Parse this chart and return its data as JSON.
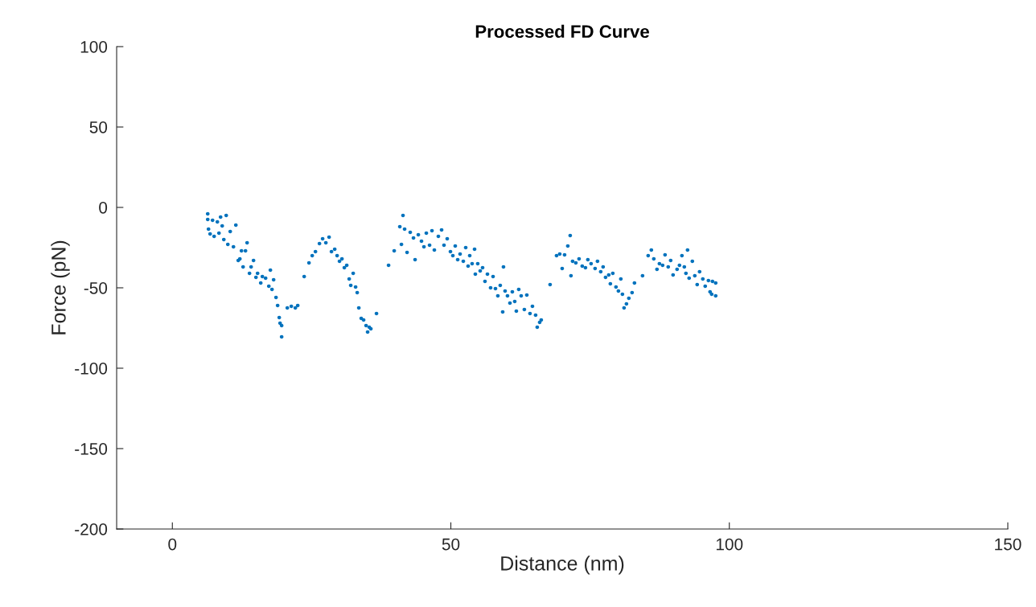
{
  "chart_data": {
    "type": "scatter",
    "title": "Processed FD Curve",
    "xlabel": "Distance (nm)",
    "ylabel": "Force (pN)",
    "xlim": [
      -10,
      150
    ],
    "xticks": [
      0,
      50,
      100,
      150
    ],
    "ylim": [
      -200,
      100
    ],
    "yticks": [
      -200,
      -150,
      -100,
      -50,
      0,
      50,
      100
    ],
    "grid": false,
    "marker": "circle",
    "series": [
      {
        "color": "#0072bd",
        "x": [
          6.35,
          6.35,
          6.49,
          6.78,
          7.22,
          7.5,
          8.08,
          8.37,
          8.66,
          8.95,
          9.24,
          9.67,
          9.96,
          10.39,
          10.97,
          11.4,
          11.83,
          12.12,
          12.41,
          12.7,
          13.13,
          13.42,
          13.85,
          14.14,
          14.57,
          15.01,
          15.3,
          15.87,
          16.16,
          16.74,
          17.32,
          17.6,
          17.89,
          18.18,
          18.61,
          18.9,
          19.19,
          19.34,
          19.62,
          19.62,
          20.64,
          21.36,
          22.08,
          22.51,
          23.67,
          24.53,
          25.11,
          25.69,
          26.41,
          26.98,
          27.56,
          28.14,
          28.57,
          29.15,
          29.58,
          30.01,
          30.45,
          30.88,
          31.31,
          31.75,
          32.03,
          32.47,
          32.9,
          33.19,
          33.48,
          33.91,
          34.34,
          34.78,
          35.06,
          35.35,
          35.64,
          36.65,
          38.82,
          39.83,
          40.84,
          41.13,
          41.41,
          41.7,
          42.14,
          42.71,
          43.29,
          43.58,
          44.16,
          44.73,
          45.17,
          45.6,
          46.18,
          46.61,
          47.04,
          47.76,
          48.34,
          48.77,
          49.35,
          49.93,
          50.36,
          50.79,
          51.23,
          51.66,
          52.24,
          52.67,
          53.1,
          53.39,
          53.82,
          54.26,
          54.4,
          54.83,
          55.27,
          55.7,
          56.13,
          56.57,
          57.14,
          57.58,
          58.01,
          58.44,
          58.87,
          59.31,
          59.45,
          59.74,
          60.17,
          60.61,
          61.04,
          61.47,
          61.76,
          62.19,
          62.63,
          63.2,
          63.64,
          64.21,
          64.65,
          65.22,
          65.51,
          65.95,
          66.23,
          67.82,
          68.98,
          69.55,
          69.99,
          70.42,
          71.0,
          71.43,
          71.57,
          71.86,
          72.44,
          73.02,
          73.59,
          74.17,
          74.6,
          75.18,
          75.9,
          76.33,
          76.91,
          77.34,
          77.78,
          78.35,
          78.64,
          79.08,
          79.65,
          80.09,
          80.52,
          80.81,
          81.1,
          81.53,
          81.96,
          82.54,
          82.97,
          84.42,
          85.43,
          86.0,
          86.44,
          87.01,
          87.45,
          88.02,
          88.46,
          89.03,
          89.47,
          89.9,
          90.62,
          91.05,
          91.49,
          91.92,
          92.21,
          92.5,
          92.78,
          93.36,
          93.8,
          94.23,
          94.66,
          95.24,
          95.67,
          96.25,
          96.54,
          96.97,
          97.55,
          97.55,
          96.83
        ],
        "values": [
          -4,
          -7.5,
          -13.5,
          -16.5,
          -8,
          -18,
          -9,
          -16,
          -6,
          -11.5,
          -20,
          -5,
          -23,
          -15,
          -24.5,
          -11,
          -33,
          -32,
          -27,
          -37,
          -27,
          -22,
          -41,
          -37,
          -33,
          -43.5,
          -41,
          -47,
          -43,
          -44,
          -49,
          -39,
          -51,
          -45,
          -56,
          -61,
          -68.5,
          -72,
          -80.5,
          -73.5,
          -62.5,
          -61.5,
          -62.5,
          -61,
          -43,
          -34.5,
          -30,
          -27.5,
          -22.5,
          -19.5,
          -22,
          -18.5,
          -27.5,
          -26,
          -30,
          -33.5,
          -32,
          -37.5,
          -36,
          -44.5,
          -48.5,
          -41,
          -49.5,
          -53,
          -62.5,
          -69,
          -70,
          -73.5,
          -77.5,
          -74.5,
          -75.5,
          -66,
          -36,
          -27,
          -12,
          -23,
          -5,
          -13.5,
          -28,
          -15.5,
          -19,
          -32.5,
          -17,
          -21,
          -24.5,
          -16,
          -23.5,
          -14.5,
          -26.5,
          -18,
          -14,
          -23.5,
          -19.5,
          -27.5,
          -30,
          -24,
          -32.5,
          -29,
          -33.5,
          -25,
          -36.5,
          -30,
          -35,
          -26,
          -41.5,
          -35,
          -39.5,
          -37.5,
          -46,
          -41.5,
          -50,
          -43,
          -50.5,
          -55,
          -48.5,
          -65,
          -37,
          -52,
          -55,
          -59.5,
          -52.5,
          -58.5,
          -64.5,
          -51,
          -55,
          -63.5,
          -54.5,
          -66,
          -61.5,
          -67,
          -74.5,
          -71.5,
          -70,
          -48,
          -30,
          -29,
          -38,
          -29.5,
          -24,
          -17.5,
          -42.5,
          -33.5,
          -34.5,
          -32,
          -36.5,
          -37.5,
          -32.5,
          -35,
          -38,
          -33.5,
          -40,
          -37,
          -43.5,
          -42,
          -47.5,
          -41,
          -49.5,
          -52,
          -44.5,
          -54,
          -62.5,
          -60,
          -56.5,
          -53,
          -47,
          -42.5,
          -30,
          -26.5,
          -32,
          -38.5,
          -35,
          -36,
          -29.5,
          -37,
          -33,
          -42,
          -38.5,
          -36,
          -30,
          -37,
          -41,
          -26.5,
          -44,
          -33.5,
          -42.5,
          -48,
          -40,
          -44.5,
          -49,
          -45.5,
          -52.5,
          -46,
          -47,
          -55,
          -54
        ]
      }
    ]
  }
}
